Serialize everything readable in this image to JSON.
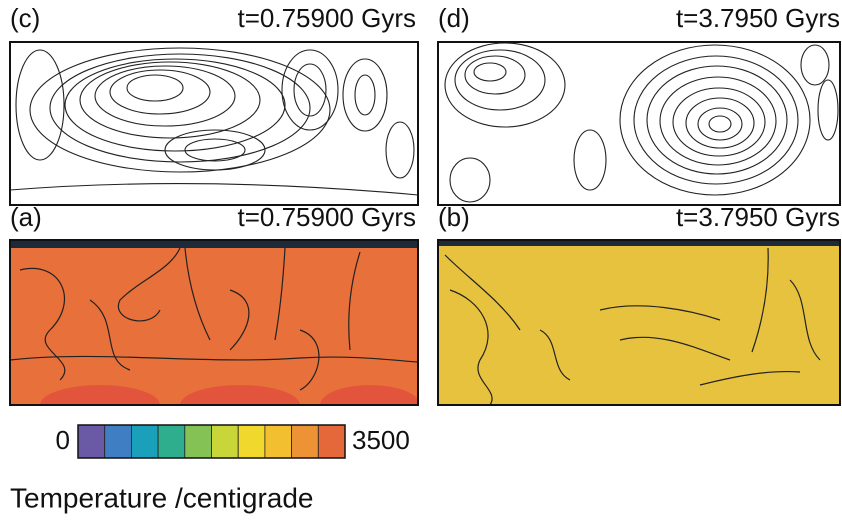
{
  "panels": [
    {
      "label": "(c)",
      "time": "t=0.75900 Gyrs"
    },
    {
      "label": "(d)",
      "time": "t=3.7950 Gyrs"
    },
    {
      "label": "(a)",
      "time": "t=0.75900 Gyrs"
    },
    {
      "label": "(b)",
      "time": "t=3.7950 Gyrs"
    }
  ],
  "colorbar": {
    "min": 0,
    "max": 3500,
    "colors": [
      "#6a5aa6",
      "#3f7ec2",
      "#1aa0bb",
      "#2eae8c",
      "#84c255",
      "#c9d63a",
      "#f0d92c",
      "#f2bf30",
      "#ee9236",
      "#e4683a"
    ]
  },
  "caption": "Temperature /centigrade"
}
